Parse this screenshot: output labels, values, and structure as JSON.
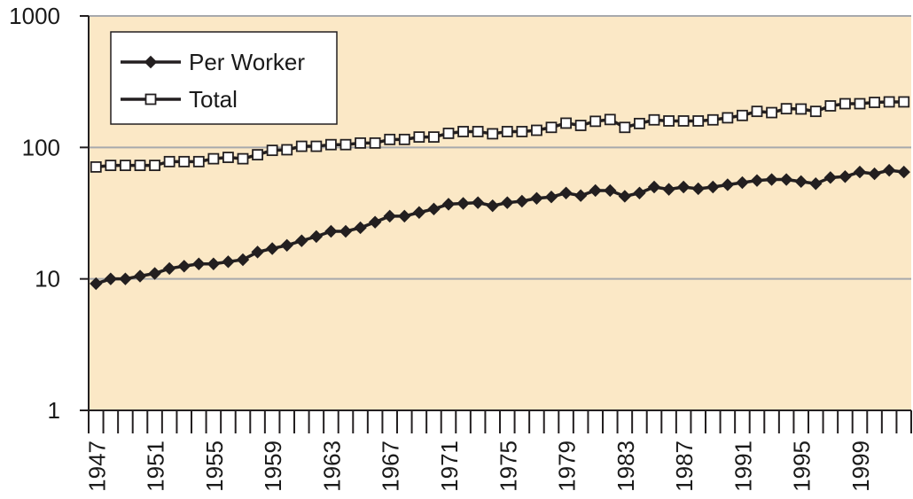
{
  "chart_data": {
    "type": "line",
    "title": "",
    "xlabel": "",
    "ylabel": "",
    "y_scale": "log",
    "ylim": [
      1,
      1000
    ],
    "xlim": [
      1947,
      2002
    ],
    "y_ticks": [
      1,
      10,
      100,
      1000
    ],
    "y_tick_labels": [
      "1",
      "10",
      "100",
      "1000"
    ],
    "x_tick_labels": [
      "1947",
      "1951",
      "1955",
      "1959",
      "1963",
      "1967",
      "1971",
      "1975",
      "1979",
      "1983",
      "1987",
      "1991",
      "1995",
      "1999"
    ],
    "grid": "horizontal",
    "legend_position": "top-left",
    "background_color": "#fbe8c6",
    "x": [
      1947,
      1948,
      1949,
      1950,
      1951,
      1952,
      1953,
      1954,
      1955,
      1956,
      1957,
      1958,
      1959,
      1960,
      1961,
      1962,
      1963,
      1964,
      1965,
      1966,
      1967,
      1968,
      1969,
      1970,
      1971,
      1972,
      1973,
      1974,
      1975,
      1976,
      1977,
      1978,
      1979,
      1980,
      1981,
      1982,
      1983,
      1984,
      1985,
      1986,
      1987,
      1988,
      1989,
      1990,
      1991,
      1992,
      1993,
      1994,
      1995,
      1996,
      1997,
      1998,
      1999,
      2000,
      2001,
      2002
    ],
    "series": [
      {
        "name": "Per Worker",
        "marker": "filled-diamond",
        "color": "#231f20",
        "values": [
          9.2,
          10,
          10,
          10.5,
          11,
          12,
          12.5,
          13,
          13,
          13.5,
          14,
          16,
          17,
          18,
          19.5,
          21,
          23,
          23,
          24.5,
          27,
          30,
          30,
          32,
          34,
          37,
          37.5,
          38,
          36,
          38,
          39,
          41,
          42,
          45,
          43,
          47,
          47,
          42.5,
          45,
          50,
          48,
          50,
          48.5,
          50,
          52,
          54,
          56,
          57,
          57,
          55,
          53,
          59,
          60,
          65,
          63,
          67,
          65
        ]
      },
      {
        "name": "Total",
        "marker": "open-square",
        "color": "#231f20",
        "values": [
          71,
          73,
          73,
          73,
          73,
          78,
          78,
          78,
          82,
          84,
          82,
          88,
          95,
          96,
          102,
          102,
          105,
          105,
          108,
          108,
          115,
          115,
          120,
          120,
          128,
          132,
          132,
          127,
          132,
          132,
          135,
          142,
          153,
          147,
          158,
          163,
          142,
          152,
          162,
          159,
          159,
          159,
          162,
          168,
          175,
          188,
          184,
          197,
          196,
          188,
          207,
          215,
          215,
          220,
          222,
          222
        ]
      }
    ]
  }
}
